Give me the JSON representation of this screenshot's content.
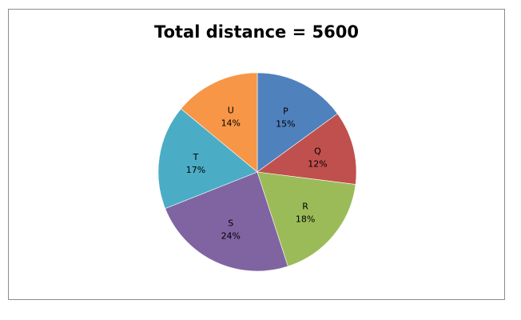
{
  "chart_data": {
    "type": "pie",
    "title": "Total distance = 5600",
    "categories": [
      "P",
      "Q",
      "R",
      "S",
      "T",
      "U"
    ],
    "values": [
      15,
      12,
      18,
      24,
      17,
      14
    ],
    "value_labels": [
      "15%",
      "12%",
      "18%",
      "24%",
      "17%",
      "14%"
    ],
    "colors": [
      "#4F81BD",
      "#C0504D",
      "#9BBB59",
      "#8064A2",
      "#4BACC6",
      "#F79646"
    ],
    "start_angle_deg": 0,
    "direction": "clockwise",
    "legend": "none",
    "labels_inside": true
  }
}
